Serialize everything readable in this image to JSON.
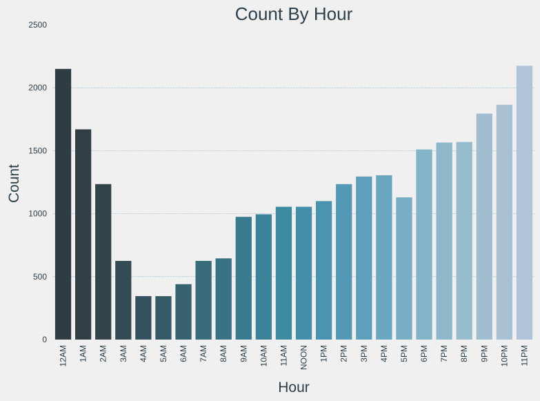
{
  "chart_data": {
    "type": "bar",
    "title": "Count By Hour",
    "xlabel": "Hour",
    "ylabel": "Count",
    "ylim": [
      0,
      2500
    ],
    "yticks": [
      0,
      500,
      1000,
      1500,
      2000,
      2500
    ],
    "grid": true,
    "categories": [
      "12AM",
      "1AM",
      "2AM",
      "3AM",
      "4AM",
      "5AM",
      "6AM",
      "7AM",
      "8AM",
      "9AM",
      "10AM",
      "11AM",
      "NOON",
      "1PM",
      "2PM",
      "3PM",
      "4PM",
      "5PM",
      "6PM",
      "7PM",
      "8PM",
      "9PM",
      "10PM",
      "11PM"
    ],
    "values": [
      2150,
      1670,
      1235,
      625,
      345,
      345,
      440,
      625,
      645,
      975,
      995,
      1055,
      1055,
      1100,
      1235,
      1295,
      1305,
      1130,
      1510,
      1565,
      1570,
      1795,
      1865,
      2175
    ],
    "colors": [
      "#2f3d42",
      "#313f45",
      "#32434a",
      "#334b55",
      "#34525e",
      "#355a67",
      "#366270",
      "#376b7a",
      "#387383",
      "#397b8e",
      "#3a8398",
      "#3c8ba1",
      "#438faa",
      "#4b94b1",
      "#5399b6",
      "#5ea0bb",
      "#69a7c0",
      "#77aec3",
      "#83b4c7",
      "#8db8c9",
      "#97bccc",
      "#a0bed0",
      "#a8c0d4",
      "#b0c4d9"
    ]
  }
}
